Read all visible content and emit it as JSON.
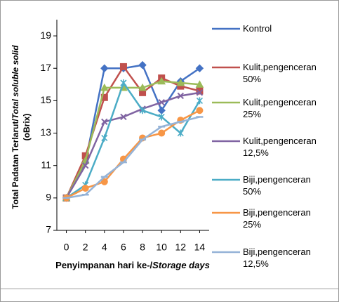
{
  "chart_data": {
    "type": "line",
    "y_label": [
      "Total Padatan Terlarut/",
      "Total soluble solid",
      "(oBrix)"
    ],
    "x_label": [
      "Penyimpanan hari ke-/",
      "Storage days"
    ],
    "x": [
      0,
      2,
      4,
      6,
      8,
      10,
      12,
      14
    ],
    "xlim": [
      -1,
      15
    ],
    "xticks": [
      0,
      2,
      4,
      6,
      8,
      10,
      12,
      14
    ],
    "ylim": [
      7,
      20
    ],
    "yticks": [
      7,
      9,
      11,
      13,
      15,
      17,
      19
    ],
    "grid": false,
    "series": [
      {
        "name": "Kontrol",
        "color": "#4472c4",
        "marker": "diamond",
        "values": [
          9,
          11.2,
          17,
          17,
          17.2,
          14.4,
          16.2,
          17
        ]
      },
      {
        "name": "Kulit,pengenceran 50%",
        "color": "#c0504d",
        "marker": "square",
        "values": [
          9,
          11.6,
          15.2,
          17.1,
          15.5,
          16.4,
          15.9,
          15.6
        ]
      },
      {
        "name": "Kulit,pengenceran 25%",
        "color": "#9bbb59",
        "marker": "triangle",
        "values": [
          9,
          11.3,
          15.8,
          15.8,
          15.8,
          16.2,
          16.1,
          16
        ]
      },
      {
        "name": "Kulit,pengenceran 12,5%",
        "color": "#8064a2",
        "marker": "x",
        "values": [
          9,
          11,
          13.7,
          14,
          14.5,
          14.9,
          15.3,
          15.5
        ]
      },
      {
        "name": "Biji,pengenceran 50%",
        "color": "#4bacc6",
        "marker": "star",
        "values": [
          9,
          9.8,
          12.7,
          16.1,
          14.4,
          14,
          13,
          15
        ]
      },
      {
        "name": "Biji,pengenceran 25%",
        "color": "#f79646",
        "marker": "circle",
        "values": [
          9,
          9.6,
          10,
          11.4,
          12.7,
          13,
          13.8,
          14.4
        ]
      },
      {
        "name": "Biji,pengenceran 12,5%",
        "color": "#95b3d7",
        "marker": "dash",
        "values": [
          9,
          9.2,
          10.3,
          11.2,
          12.6,
          13.4,
          13.7,
          14
        ]
      }
    ]
  }
}
